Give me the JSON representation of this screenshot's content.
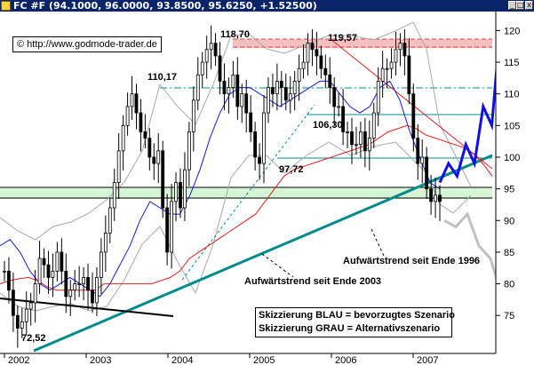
{
  "window": {
    "title": "FC #F (94.1000, 96.0000, 93.8500, 95.6250, +1.52500)",
    "buttons": {
      "minimize": "_",
      "maximize": "□",
      "close": "x"
    }
  },
  "chart_data": {
    "type": "candlestick",
    "title": "FC #F (94.1000, 96.0000, 93.8500, 95.6250, +1.52500)",
    "ylim": [
      69,
      123
    ],
    "y_ticks": [
      "120",
      "115",
      "110",
      "105",
      "100",
      "95",
      "90",
      "85",
      "80",
      "75"
    ],
    "x_ticks": [
      "2002",
      "2003",
      "2004",
      "2005",
      "2006",
      "2007"
    ],
    "price_labels": [
      "118,70",
      "119,57",
      "110,17",
      "106,30",
      "97,72",
      "72,52"
    ],
    "horizontal_levels": [
      119.57,
      118.7,
      110.17,
      106.3,
      97.72,
      92.5,
      91.5
    ],
    "series": [
      {
        "name": "price",
        "close": [
          82,
          79,
          75,
          73,
          74,
          76,
          77,
          80,
          84,
          83,
          81,
          82,
          85,
          82,
          78,
          79,
          80,
          80,
          81,
          79,
          77,
          81,
          85,
          88,
          92,
          96,
          101,
          105,
          108,
          110,
          107,
          104,
          103,
          100,
          99,
          101,
          92,
          85,
          93,
          96,
          92,
          98,
          104,
          109,
          113,
          115,
          117,
          118,
          116,
          112,
          110,
          111,
          113,
          108,
          110,
          107,
          104,
          100,
          99,
          107,
          111,
          110,
          112,
          111,
          109,
          110,
          112,
          114,
          115,
          118,
          117,
          116,
          114,
          113,
          111,
          108,
          108,
          104,
          104,
          102,
          102,
          104,
          101,
          103,
          107,
          112,
          114,
          114,
          115,
          117,
          118,
          116,
          110,
          103,
          99,
          100,
          95,
          93,
          94,
          93
        ]
      },
      {
        "name": "ma_red",
        "values": [
          80,
          80.5,
          80.8,
          81,
          80.5,
          79.5,
          79,
          79,
          79,
          79,
          79,
          80,
          80,
          80,
          80,
          80,
          80,
          80.5,
          81,
          82,
          84,
          85,
          86,
          87,
          88,
          89,
          90,
          91,
          93,
          95,
          97,
          98,
          98.5,
          99,
          99.5,
          100,
          100.5,
          101,
          101.5,
          102,
          103,
          104,
          104.5,
          105,
          104.5,
          103.5,
          103,
          102.5,
          102,
          101.5,
          100.5,
          99,
          97
        ]
      },
      {
        "name": "ma_blue",
        "values": [
          86,
          87,
          85,
          82,
          80,
          79,
          80,
          81,
          80,
          79,
          78,
          80,
          83,
          86,
          90,
          93,
          92,
          91,
          91,
          94,
          98,
          103,
          107,
          110,
          111,
          111,
          110,
          109,
          108,
          109,
          110,
          111,
          112,
          112,
          110,
          108,
          107,
          108,
          111,
          112,
          109,
          104,
          100,
          96,
          95
        ]
      },
      {
        "name": "scenario_blau",
        "values": [
          96,
          99,
          97,
          102,
          99,
          108,
          105,
          121,
          117
        ]
      },
      {
        "name": "scenario_grau",
        "values": [
          90,
          89,
          91,
          86,
          84,
          78
        ]
      }
    ],
    "trendlines": [
      "Aufwärtstrend seit Ende 1996",
      "Aufwärtstrend seit Ende 2003"
    ],
    "colors": {
      "price": "#000000",
      "ma_red": "#e02020",
      "ma_blue": "#1a1acd",
      "bollinger": "#a8a8a8",
      "trend": "#009090",
      "scenario_blau": "#1010e0",
      "scenario_grau": "#c0c0c0",
      "resistance_zone": "#f0a0a0",
      "support_zone": "#c8f0c8"
    }
  },
  "annotations": {
    "copyright": "© http://www.godmode-trader.de",
    "trend1996": "Aufwärtstrend seit Ende 1996",
    "trend2003": "Aufwärtstrend seit Ende 2003",
    "legend_blau": "Skizzierung BLAU = bevorzugtes Szenario",
    "legend_grau": "Skizzierung GRAU = Alternativszenario"
  }
}
